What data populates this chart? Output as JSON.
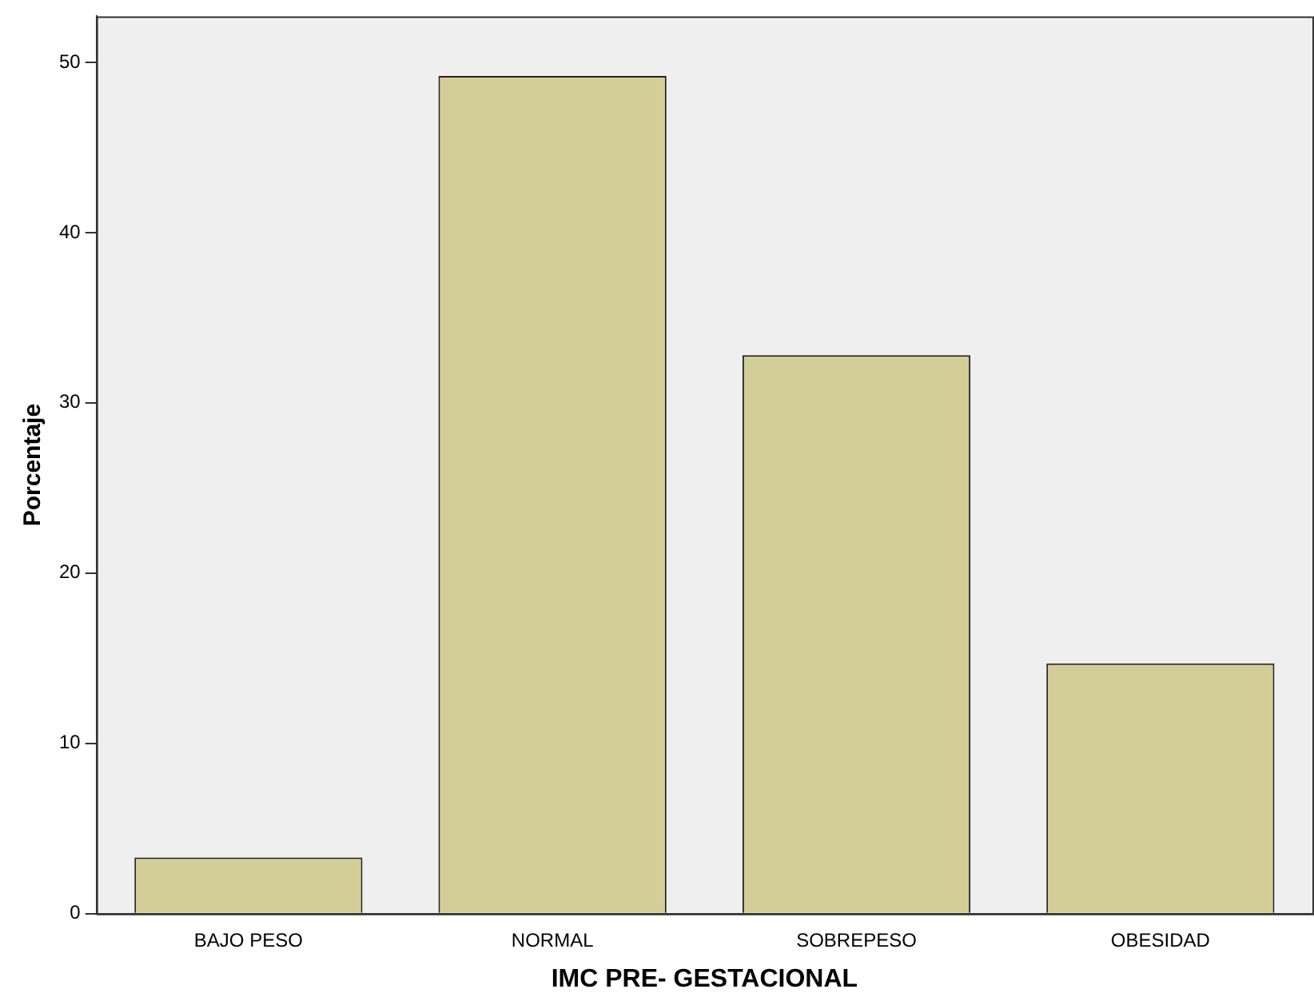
{
  "chart_data": {
    "type": "bar",
    "xlabel": "IMC PRE- GESTACIONAL",
    "ylabel": "Porcentaje",
    "categories": [
      "BAJO PESO",
      "NORMAL",
      "SOBREPESO",
      "OBESIDAD"
    ],
    "values": [
      3.3,
      49.2,
      32.8,
      14.7
    ],
    "color": "#d3cd98",
    "ylim": [
      0,
      52.7
    ],
    "yticks": [
      0,
      10,
      20,
      30,
      40,
      50
    ],
    "grid": false,
    "legend": false
  }
}
